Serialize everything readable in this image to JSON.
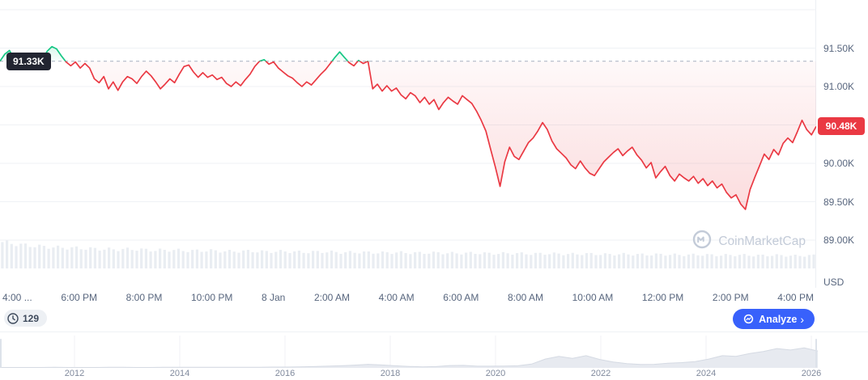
{
  "chart_data": {
    "type": "line",
    "title": "",
    "unit": "USD",
    "baseline": {
      "label": "91.33K",
      "value": 91.33
    },
    "last": {
      "label": "90.48K",
      "value": 90.48
    },
    "ylim": [
      88.9,
      92.0
    ],
    "grid_values": [
      92.0,
      91.5,
      91.0,
      90.5,
      90.0,
      89.5,
      89.0
    ],
    "y_axis_labels": [
      {
        "label": "91.50K",
        "value": 91.5
      },
      {
        "label": "91.00K",
        "value": 91.0
      },
      {
        "label": "90.00K",
        "value": 90.0
      },
      {
        "label": "89.50K",
        "value": 89.5
      },
      {
        "label": "89.00K",
        "value": 89.0
      }
    ],
    "x_labels": [
      "4:00 ...",
      "6:00 PM",
      "8:00 PM",
      "10:00 PM",
      "8 Jan",
      "2:00 AM",
      "4:00 AM",
      "6:00 AM",
      "8:00 AM",
      "10:00 AM",
      "12:00 PM",
      "2:00 PM",
      "4:00 PM"
    ],
    "colors": {
      "up": "#16c784",
      "down": "#ea3943",
      "grid": "#eff2f5",
      "baseline_dash": "#a8b1c2",
      "volume": "#e9edf2",
      "baseline_badge_bg": "#222531"
    },
    "prices": [
      91.33,
      91.42,
      91.47,
      91.36,
      91.3,
      91.26,
      91.34,
      91.28,
      91.24,
      91.35,
      91.46,
      91.52,
      91.49,
      91.4,
      91.32,
      91.27,
      91.32,
      91.24,
      91.3,
      91.24,
      91.1,
      91.05,
      91.13,
      90.97,
      91.06,
      90.95,
      91.06,
      91.13,
      91.1,
      91.04,
      91.13,
      91.2,
      91.14,
      91.06,
      90.97,
      91.03,
      91.1,
      91.05,
      91.16,
      91.26,
      91.28,
      91.19,
      91.12,
      91.18,
      91.12,
      91.15,
      91.09,
      91.12,
      91.04,
      91.0,
      91.06,
      91.01,
      91.09,
      91.16,
      91.26,
      91.33,
      91.35,
      91.29,
      91.32,
      91.24,
      91.19,
      91.14,
      91.11,
      91.05,
      91.0,
      91.06,
      91.02,
      91.09,
      91.16,
      91.22,
      91.3,
      91.38,
      91.45,
      91.38,
      91.31,
      91.27,
      91.34,
      91.3,
      91.33,
      90.97,
      91.03,
      90.94,
      91.01,
      90.94,
      90.98,
      90.89,
      90.84,
      90.92,
      90.88,
      90.79,
      90.86,
      90.77,
      90.83,
      90.7,
      90.79,
      90.86,
      90.81,
      90.77,
      90.88,
      90.83,
      90.78,
      90.68,
      90.56,
      90.42,
      90.18,
      89.95,
      89.7,
      90.02,
      90.21,
      90.09,
      90.05,
      90.16,
      90.27,
      90.33,
      90.42,
      90.53,
      90.44,
      90.29,
      90.19,
      90.13,
      90.07,
      89.98,
      89.93,
      90.03,
      89.94,
      89.87,
      89.84,
      89.93,
      90.02,
      90.08,
      90.14,
      90.19,
      90.1,
      90.16,
      90.21,
      90.11,
      90.04,
      89.94,
      90.01,
      89.81,
      89.89,
      89.96,
      89.84,
      89.77,
      89.86,
      89.81,
      89.77,
      89.83,
      89.74,
      89.8,
      89.71,
      89.77,
      89.68,
      89.73,
      89.62,
      89.55,
      89.59,
      89.47,
      89.4,
      89.66,
      89.82,
      89.97,
      90.12,
      90.05,
      90.18,
      90.11,
      90.26,
      90.33,
      90.27,
      90.41,
      90.56,
      90.44,
      90.37,
      90.48
    ],
    "volume_rel": [
      0.96,
      0.86,
      0.8,
      0.76,
      0.74,
      0.71,
      0.69,
      0.7,
      0.66,
      0.67,
      0.64,
      0.65,
      0.62,
      0.63,
      0.61,
      0.62,
      0.59,
      0.61,
      0.58,
      0.59,
      0.57,
      0.58,
      0.56,
      0.57,
      0.55,
      0.56,
      0.54,
      0.55,
      0.53,
      0.54,
      0.52,
      0.53,
      0.51,
      0.52,
      0.5,
      0.51,
      0.49,
      0.5,
      0.48,
      0.49,
      0.47,
      0.48,
      0.46,
      0.47
    ]
  },
  "toolbar": {
    "history_count": "129",
    "analyze_label": "Analyze",
    "analyze_chevron": "›",
    "analyze_bg": "#3861fb"
  },
  "watermark": {
    "text": "CoinMarketCap"
  },
  "timeline": {
    "years": [
      "2012",
      "2014",
      "2016",
      "2018",
      "2020",
      "2022",
      "2024",
      "2026"
    ],
    "history_rel": [
      0.02,
      0.02,
      0.02,
      0.02,
      0.03,
      0.02,
      0.02,
      0.02,
      0.03,
      0.03,
      0.02,
      0.02,
      0.03,
      0.03,
      0.03,
      0.03,
      0.03,
      0.03,
      0.03,
      0.03,
      0.04,
      0.04,
      0.05,
      0.06,
      0.08,
      0.1,
      0.13,
      0.17,
      0.14,
      0.1,
      0.07,
      0.05,
      0.06,
      0.11,
      0.12,
      0.08,
      0.08,
      0.09,
      0.1,
      0.18,
      0.42,
      0.55,
      0.45,
      0.58,
      0.4,
      0.28,
      0.2,
      0.16,
      0.17,
      0.22,
      0.25,
      0.3,
      0.42,
      0.58,
      0.55,
      0.68,
      0.78,
      0.92,
      0.85,
      0.95,
      0.8
    ]
  }
}
